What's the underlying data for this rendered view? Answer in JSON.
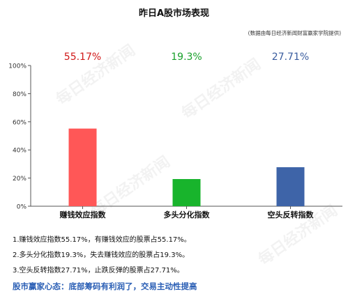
{
  "chart_data": {
    "type": "bar",
    "title": "昨日A股市场表现",
    "subtitle": "(数据由每日经济新闻财富赢家学院提供)",
    "categories": [
      "赚钱效应指数",
      "多头分化指数",
      "空头反转指数"
    ],
    "values": [
      55.17,
      19.3,
      27.71
    ],
    "value_labels": [
      "55.17%",
      "19.3%",
      "27.71%"
    ],
    "colors": [
      "#ff5757",
      "#18b42c",
      "#3e64a8"
    ],
    "label_colors": [
      "#d01818",
      "#18a02a",
      "#3a5c9e"
    ],
    "ylim": [
      0,
      100
    ],
    "yticks": [
      0,
      20,
      40,
      60,
      80,
      100
    ],
    "ytick_labels": [
      "0%",
      "20%",
      "40%",
      "60%",
      "80%",
      "100%"
    ],
    "grid": false,
    "legend": "none"
  },
  "notes": [
    "1.赚钱效应指数55.17%，有赚钱效应的股票占55.17%。",
    "2.多头分化指数19.3%，失去赚钱效应的股票占19.3%。",
    "3.空头反转指数27.71%，止跌反弹的股票占27.71%。"
  ],
  "conclusion": "股市赢家心态：底部筹码有利润了，交易主动性提高",
  "watermark": "每日经济新闻"
}
